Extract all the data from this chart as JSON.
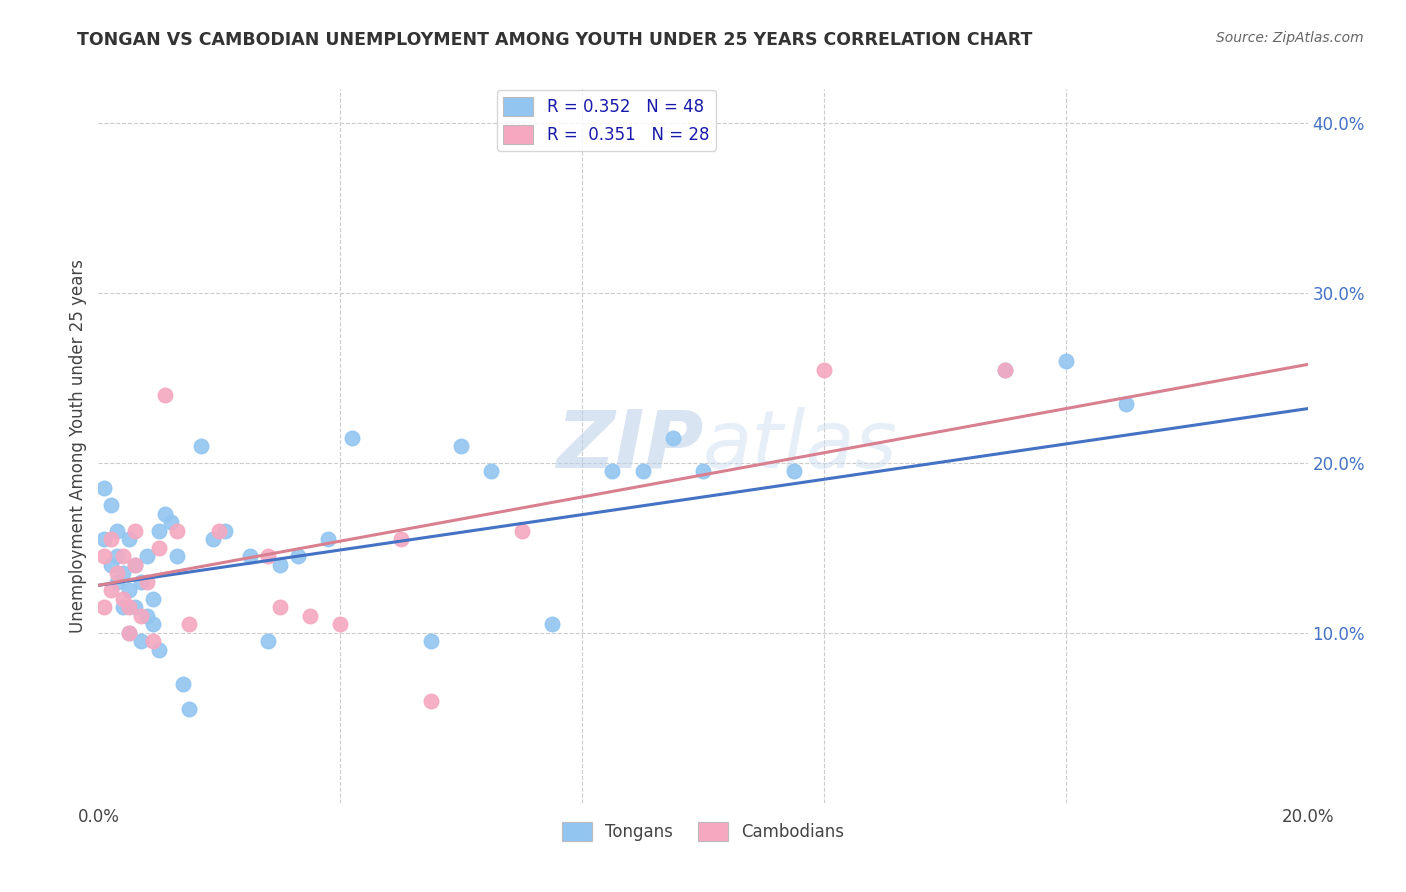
{
  "title": "TONGAN VS CAMBODIAN UNEMPLOYMENT AMONG YOUTH UNDER 25 YEARS CORRELATION CHART",
  "source": "Source: ZipAtlas.com",
  "ylabel": "Unemployment Among Youth under 25 years",
  "xlim": [
    0.0,
    0.2
  ],
  "ylim": [
    0.0,
    0.42
  ],
  "tongan_color": "#92C5F0",
  "cambodian_color": "#F5A8C0",
  "tongan_line_color": "#4472C4",
  "cambodian_line_color": "#D98090",
  "R_tongan": 0.352,
  "N_tongan": 48,
  "R_cambodian": 0.351,
  "N_cambodian": 28,
  "watermark_zip": "ZIP",
  "watermark_atlas": "atlas",
  "tongan_x": [
    0.001,
    0.001,
    0.002,
    0.002,
    0.003,
    0.003,
    0.003,
    0.004,
    0.004,
    0.005,
    0.005,
    0.005,
    0.006,
    0.006,
    0.007,
    0.007,
    0.008,
    0.008,
    0.009,
    0.009,
    0.01,
    0.01,
    0.011,
    0.012,
    0.013,
    0.014,
    0.015,
    0.017,
    0.019,
    0.021,
    0.025,
    0.028,
    0.03,
    0.033,
    0.038,
    0.042,
    0.055,
    0.06,
    0.065,
    0.075,
    0.085,
    0.09,
    0.095,
    0.1,
    0.115,
    0.15,
    0.16,
    0.17
  ],
  "tongan_y": [
    0.185,
    0.155,
    0.175,
    0.14,
    0.16,
    0.13,
    0.145,
    0.115,
    0.135,
    0.155,
    0.125,
    0.1,
    0.14,
    0.115,
    0.095,
    0.13,
    0.11,
    0.145,
    0.12,
    0.105,
    0.09,
    0.16,
    0.17,
    0.165,
    0.145,
    0.07,
    0.055,
    0.21,
    0.155,
    0.16,
    0.145,
    0.095,
    0.14,
    0.145,
    0.155,
    0.215,
    0.095,
    0.21,
    0.195,
    0.105,
    0.195,
    0.195,
    0.215,
    0.195,
    0.195,
    0.255,
    0.26,
    0.235
  ],
  "cambodian_x": [
    0.001,
    0.001,
    0.002,
    0.002,
    0.003,
    0.004,
    0.004,
    0.005,
    0.005,
    0.006,
    0.006,
    0.007,
    0.008,
    0.009,
    0.01,
    0.011,
    0.013,
    0.015,
    0.02,
    0.028,
    0.03,
    0.035,
    0.04,
    0.05,
    0.055,
    0.07,
    0.12,
    0.15
  ],
  "cambodian_y": [
    0.145,
    0.115,
    0.155,
    0.125,
    0.135,
    0.12,
    0.145,
    0.115,
    0.1,
    0.14,
    0.16,
    0.11,
    0.13,
    0.095,
    0.15,
    0.24,
    0.16,
    0.105,
    0.16,
    0.145,
    0.115,
    0.11,
    0.105,
    0.155,
    0.06,
    0.16,
    0.255,
    0.255
  ]
}
